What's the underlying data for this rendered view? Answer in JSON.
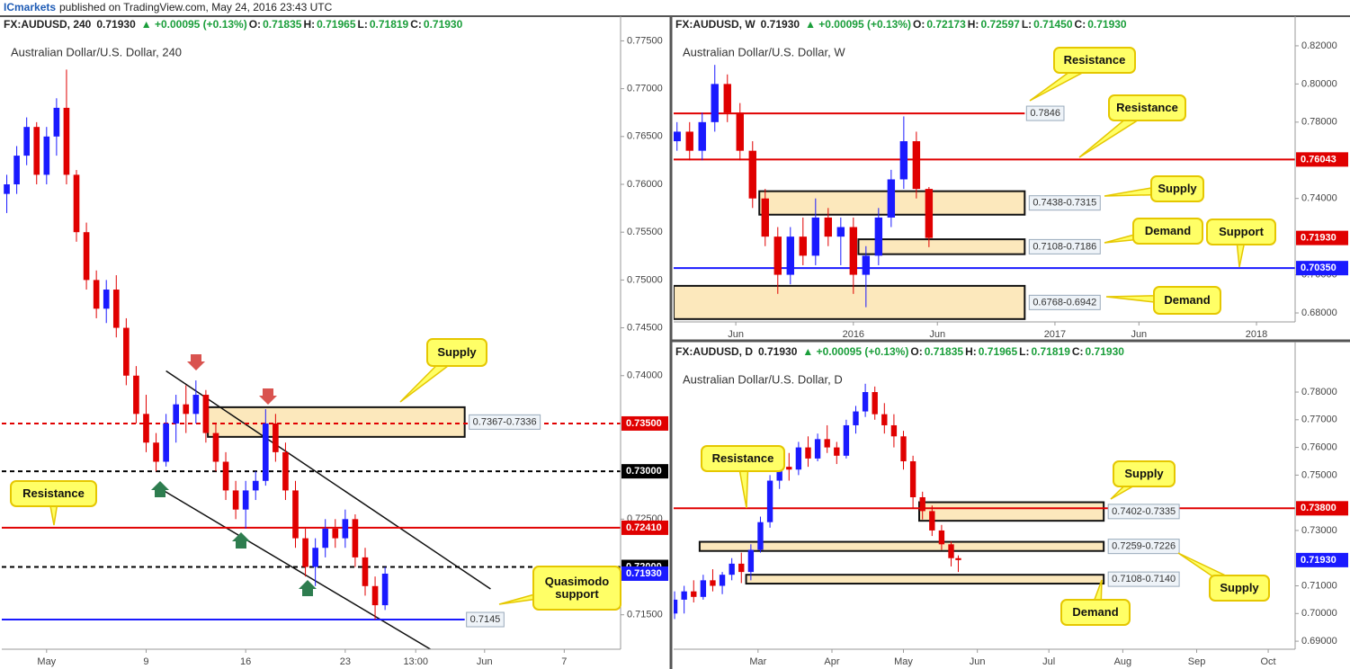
{
  "header": {
    "author": "ICmarkets",
    "text": "published on TradingView.com, May 24, 2016 23:43 UTC"
  },
  "chart_data": [
    {
      "type": "candlestick",
      "symbol": "FX:AUDUSD, 240",
      "last": "0.71930",
      "change": "▲ +0.00095 (+0.13%)",
      "ohlc": [
        {
          "label": "O:",
          "value": "0.71835"
        },
        {
          "label": "H:",
          "value": "0.71965"
        },
        {
          "label": "L:",
          "value": "0.71819"
        },
        {
          "label": "C:",
          "value": "0.71930"
        }
      ],
      "title": "Australian Dollar/U.S. Dollar, 240",
      "up_color": "#1a1aff",
      "down_color": "#e00000",
      "x": [
        -2,
        -1.5,
        -1,
        -0.5,
        0,
        0.5,
        1,
        1.5,
        2,
        2.5,
        3,
        3.5,
        4,
        4.5,
        5,
        5.5,
        6,
        6.5,
        7,
        7.5,
        8,
        8.5,
        9,
        9.5,
        10,
        10.5,
        11,
        11.5,
        12,
        12.5,
        13,
        13.5,
        14,
        14.5,
        15,
        15.5,
        16,
        16.5,
        17
      ],
      "open": [
        0.759,
        0.76,
        0.763,
        0.766,
        0.761,
        0.765,
        0.768,
        0.761,
        0.755,
        0.75,
        0.747,
        0.749,
        0.745,
        0.74,
        0.736,
        0.733,
        0.731,
        0.735,
        0.737,
        0.736,
        0.738,
        0.734,
        0.731,
        0.728,
        0.726,
        0.728,
        0.729,
        0.735,
        0.732,
        0.728,
        0.723,
        0.72,
        0.722,
        0.724,
        0.723,
        0.725,
        0.721,
        0.718,
        0.716
      ],
      "high": [
        0.761,
        0.764,
        0.767,
        0.7665,
        0.766,
        0.769,
        0.772,
        0.7615,
        0.756,
        0.751,
        0.75,
        0.7505,
        0.746,
        0.741,
        0.738,
        0.734,
        0.736,
        0.738,
        0.739,
        0.7395,
        0.7385,
        0.735,
        0.732,
        0.729,
        0.729,
        0.73,
        0.7365,
        0.736,
        0.733,
        0.729,
        0.724,
        0.723,
        0.725,
        0.725,
        0.726,
        0.7255,
        0.722,
        0.719,
        0.72
      ],
      "low": [
        0.757,
        0.759,
        0.762,
        0.76,
        0.76,
        0.763,
        0.76,
        0.754,
        0.749,
        0.746,
        0.7455,
        0.744,
        0.739,
        0.735,
        0.732,
        0.73,
        0.7305,
        0.733,
        0.734,
        0.735,
        0.733,
        0.73,
        0.727,
        0.725,
        0.724,
        0.727,
        0.7285,
        0.731,
        0.727,
        0.722,
        0.719,
        0.718,
        0.721,
        0.722,
        0.722,
        0.72,
        0.717,
        0.7145,
        0.7155
      ],
      "close": [
        0.76,
        0.763,
        0.766,
        0.761,
        0.765,
        0.768,
        0.761,
        0.755,
        0.75,
        0.747,
        0.749,
        0.745,
        0.74,
        0.736,
        0.733,
        0.731,
        0.735,
        0.737,
        0.736,
        0.738,
        0.734,
        0.731,
        0.728,
        0.726,
        0.728,
        0.729,
        0.735,
        0.732,
        0.728,
        0.723,
        0.72,
        0.722,
        0.724,
        0.723,
        0.725,
        0.721,
        0.718,
        0.716,
        0.7193
      ],
      "xlim": [
        -2.25,
        28.83
      ],
      "ylim": [
        0.7114,
        0.7757
      ],
      "xticks": [
        {
          "value": 0,
          "label": "May"
        },
        {
          "value": 5,
          "label": "9"
        },
        {
          "value": 10,
          "label": "16"
        },
        {
          "value": 15,
          "label": "23"
        },
        {
          "value": 18.54,
          "label": "13:00"
        },
        {
          "value": 22,
          "label": "Jun"
        },
        {
          "value": 26,
          "label": "7"
        }
      ],
      "yticks": [
        {
          "value": 0.775,
          "label": "0.77500"
        },
        {
          "value": 0.77,
          "label": "0.77000"
        },
        {
          "value": 0.765,
          "label": "0.76500"
        },
        {
          "value": 0.76,
          "label": "0.76000"
        },
        {
          "value": 0.755,
          "label": "0.75500"
        },
        {
          "value": 0.75,
          "label": "0.75000"
        },
        {
          "value": 0.745,
          "label": "0.74500"
        },
        {
          "value": 0.74,
          "label": "0.74000"
        },
        {
          "value": 0.725,
          "label": "0.72500"
        },
        {
          "value": 0.715,
          "label": "0.71500"
        }
      ],
      "levels": [
        {
          "value": 0.735,
          "color": "#e00000",
          "dash": true,
          "label": "0.73500"
        },
        {
          "value": 0.73,
          "color": "#000000",
          "dash": true,
          "label": "0.73000"
        },
        {
          "value": 0.7241,
          "color": "#e00000",
          "label": "0.72410"
        },
        {
          "value": 0.72,
          "color": "#000000",
          "dash": true,
          "label": "0.72000"
        },
        {
          "value": 0.7193,
          "color": "#1a1aff",
          "line": false,
          "label": "0.71930"
        },
        {
          "value": 0.7145,
          "color": "#1a1aff",
          "x": [
            -2.25,
            21.0
          ],
          "label": "0.7145"
        }
      ],
      "zones": [
        {
          "x": [
            8.1,
            21.0
          ],
          "low": 0.7336,
          "high": 0.7367,
          "label": "0.7367-0.7336"
        }
      ],
      "lines": [
        {
          "x": [
            6.0,
            22.3
          ],
          "y": [
            0.7405,
            0.7177
          ]
        },
        {
          "x": [
            5.86,
            19.6
          ],
          "y": [
            0.728,
            0.711
          ]
        }
      ],
      "annotations": [
        "Supply",
        "Resistance",
        "Quasimodo support"
      ]
    },
    {
      "type": "candlestick",
      "symbol": "FX:AUDUSD, W",
      "last": "0.71930",
      "change": "▲ +0.00095 (+0.13%)",
      "ohlc": [
        {
          "label": "O:",
          "value": "0.72173"
        },
        {
          "label": "H:",
          "value": "0.72597"
        },
        {
          "label": "L:",
          "value": "0.71450"
        },
        {
          "label": "C:",
          "value": "0.71930"
        }
      ],
      "title": "Australian Dollar/U.S. Dollar, W",
      "up_color": "#1a1aff",
      "down_color": "#e00000",
      "x": [
        1.5,
        2.25,
        3,
        3.75,
        4.5,
        5.25,
        6,
        6.75,
        7.5,
        8.25,
        9,
        9.75,
        10.5,
        11.25,
        12,
        12.75,
        13.5,
        14.25,
        15,
        15.75,
        16.5
      ],
      "open": [
        0.77,
        0.775,
        0.765,
        0.78,
        0.8,
        0.785,
        0.765,
        0.74,
        0.72,
        0.7,
        0.72,
        0.71,
        0.73,
        0.72,
        0.725,
        0.7,
        0.71,
        0.73,
        0.75,
        0.77,
        0.745
      ],
      "high": [
        0.78,
        0.78,
        0.785,
        0.81,
        0.805,
        0.79,
        0.77,
        0.745,
        0.725,
        0.725,
        0.73,
        0.74,
        0.735,
        0.73,
        0.73,
        0.715,
        0.735,
        0.755,
        0.783,
        0.775,
        0.746
      ],
      "low": [
        0.765,
        0.76,
        0.76,
        0.775,
        0.78,
        0.76,
        0.735,
        0.715,
        0.69,
        0.695,
        0.705,
        0.705,
        0.715,
        0.705,
        0.69,
        0.683,
        0.705,
        0.725,
        0.745,
        0.74,
        0.7145
      ],
      "close": [
        0.775,
        0.765,
        0.78,
        0.8,
        0.785,
        0.765,
        0.74,
        0.72,
        0.7,
        0.72,
        0.71,
        0.73,
        0.72,
        0.725,
        0.7,
        0.71,
        0.73,
        0.75,
        0.77,
        0.745,
        0.7193
      ],
      "xlim": [
        1.3,
        38.3
      ],
      "ylim": [
        0.6753,
        0.8261
      ],
      "xticks": [
        {
          "value": 5,
          "label": "Jun"
        },
        {
          "value": 12,
          "label": "2016"
        },
        {
          "value": 17,
          "label": "Jun"
        },
        {
          "value": 24,
          "label": "2017"
        },
        {
          "value": 29,
          "label": "Jun"
        },
        {
          "value": 36,
          "label": "2018"
        }
      ],
      "yticks": [
        {
          "value": 0.82,
          "label": "0.82000"
        },
        {
          "value": 0.8,
          "label": "0.80000"
        },
        {
          "value": 0.78,
          "label": "0.78000"
        },
        {
          "value": 0.74,
          "label": "0.74000"
        },
        {
          "value": 0.7,
          "label": "0.70000"
        },
        {
          "value": 0.68,
          "label": "0.68000"
        }
      ],
      "levels": [
        {
          "value": 0.7846,
          "color": "#e00000",
          "x": [
            1.3,
            22.2
          ],
          "label": "0.7846"
        },
        {
          "value": 0.76043,
          "color": "#e00000",
          "label": "0.76043"
        },
        {
          "value": 0.7193,
          "color": "#e00000",
          "line": false,
          "label": "0.71930"
        },
        {
          "value": 0.7035,
          "color": "#1a1aff",
          "label": "0.70350"
        }
      ],
      "zones": [
        {
          "x": [
            6.4,
            22.2
          ],
          "low": 0.7315,
          "high": 0.7438,
          "label": "0.7438-0.7315"
        },
        {
          "x": [
            12.3,
            22.2
          ],
          "low": 0.7108,
          "high": 0.7186,
          "label": "0.7108-0.7186"
        },
        {
          "x": [
            1.3,
            22.2
          ],
          "low": 0.6768,
          "high": 0.6942,
          "label": "0.6768-0.6942"
        }
      ],
      "lines": [],
      "annotations": [
        "Resistance",
        "Resistance",
        "Supply",
        "Demand",
        "Support",
        "Demand"
      ]
    },
    {
      "type": "candlestick",
      "symbol": "FX:AUDUSD, D",
      "last": "0.71930",
      "change": "▲ +0.00095 (+0.13%)",
      "ohlc": [
        {
          "label": "O:",
          "value": "0.71835"
        },
        {
          "label": "H:",
          "value": "0.71965"
        },
        {
          "label": "L:",
          "value": "0.71819"
        },
        {
          "label": "C:",
          "value": "0.71930"
        }
      ],
      "title": "Australian Dollar/U.S. Dollar, D",
      "up_color": "#1a1aff",
      "down_color": "#e00000",
      "x": [
        -6,
        -2,
        2,
        6,
        10,
        14,
        18,
        22,
        26,
        30,
        34,
        38,
        42,
        46,
        50,
        54,
        58,
        62,
        66,
        70,
        74,
        78,
        82,
        86,
        90,
        94,
        98,
        102,
        106,
        110,
        113
      ],
      "open": [
        0.7,
        0.705,
        0.708,
        0.706,
        0.712,
        0.71,
        0.714,
        0.718,
        0.715,
        0.723,
        0.733,
        0.748,
        0.753,
        0.752,
        0.76,
        0.756,
        0.763,
        0.76,
        0.757,
        0.768,
        0.773,
        0.78,
        0.772,
        0.768,
        0.764,
        0.755,
        0.742,
        0.737,
        0.73,
        0.725,
        0.72
      ],
      "high": [
        0.708,
        0.71,
        0.712,
        0.714,
        0.716,
        0.715,
        0.72,
        0.722,
        0.725,
        0.735,
        0.75,
        0.756,
        0.758,
        0.762,
        0.764,
        0.765,
        0.768,
        0.762,
        0.77,
        0.775,
        0.783,
        0.782,
        0.776,
        0.772,
        0.766,
        0.757,
        0.744,
        0.739,
        0.732,
        0.726,
        0.721
      ],
      "low": [
        0.698,
        0.7,
        0.704,
        0.705,
        0.708,
        0.707,
        0.712,
        0.711,
        0.712,
        0.722,
        0.731,
        0.745,
        0.748,
        0.75,
        0.753,
        0.755,
        0.758,
        0.754,
        0.756,
        0.765,
        0.771,
        0.77,
        0.765,
        0.76,
        0.752,
        0.738,
        0.734,
        0.728,
        0.723,
        0.717,
        0.715
      ],
      "close": [
        0.705,
        0.708,
        0.706,
        0.712,
        0.71,
        0.714,
        0.718,
        0.715,
        0.723,
        0.733,
        0.748,
        0.753,
        0.752,
        0.76,
        0.756,
        0.763,
        0.76,
        0.757,
        0.768,
        0.773,
        0.78,
        0.772,
        0.768,
        0.764,
        0.755,
        0.742,
        0.737,
        0.73,
        0.725,
        0.72,
        0.7193
      ],
      "xlim": [
        -6.4,
        254.3
      ],
      "ylim": [
        0.6871,
        0.7917
      ],
      "xticks": [
        {
          "value": 29,
          "label": "Mar"
        },
        {
          "value": 60,
          "label": "Apr"
        },
        {
          "value": 90,
          "label": "May"
        },
        {
          "value": 121,
          "label": "Jun"
        },
        {
          "value": 151,
          "label": "Jul"
        },
        {
          "value": 182,
          "label": "Aug"
        },
        {
          "value": 213,
          "label": "Sep"
        },
        {
          "value": 243,
          "label": "Oct"
        }
      ],
      "yticks": [
        {
          "value": 0.78,
          "label": "0.78000"
        },
        {
          "value": 0.77,
          "label": "0.77000"
        },
        {
          "value": 0.76,
          "label": "0.76000"
        },
        {
          "value": 0.75,
          "label": "0.75000"
        },
        {
          "value": 0.73,
          "label": "0.73000"
        },
        {
          "value": 0.71,
          "label": "0.71000"
        },
        {
          "value": 0.7,
          "label": "0.70000"
        },
        {
          "value": 0.69,
          "label": "0.69000"
        }
      ],
      "levels": [
        {
          "value": 0.738,
          "color": "#e00000",
          "label": "0.73800"
        },
        {
          "value": 0.7193,
          "color": "#1a1aff",
          "line": false,
          "label": "0.71930"
        }
      ],
      "zones": [
        {
          "x": [
            96.6,
            174
          ],
          "low": 0.7335,
          "high": 0.7402,
          "label": "0.7402-0.7335"
        },
        {
          "x": [
            4.5,
            174
          ],
          "low": 0.7226,
          "high": 0.7259,
          "label": "0.7259-0.7226"
        },
        {
          "x": [
            24,
            174
          ],
          "low": 0.7108,
          "high": 0.714,
          "label": "0.7108-0.7140"
        }
      ],
      "lines": [],
      "annotations": [
        "Resistance",
        "Supply",
        "Supply",
        "Demand"
      ]
    }
  ]
}
